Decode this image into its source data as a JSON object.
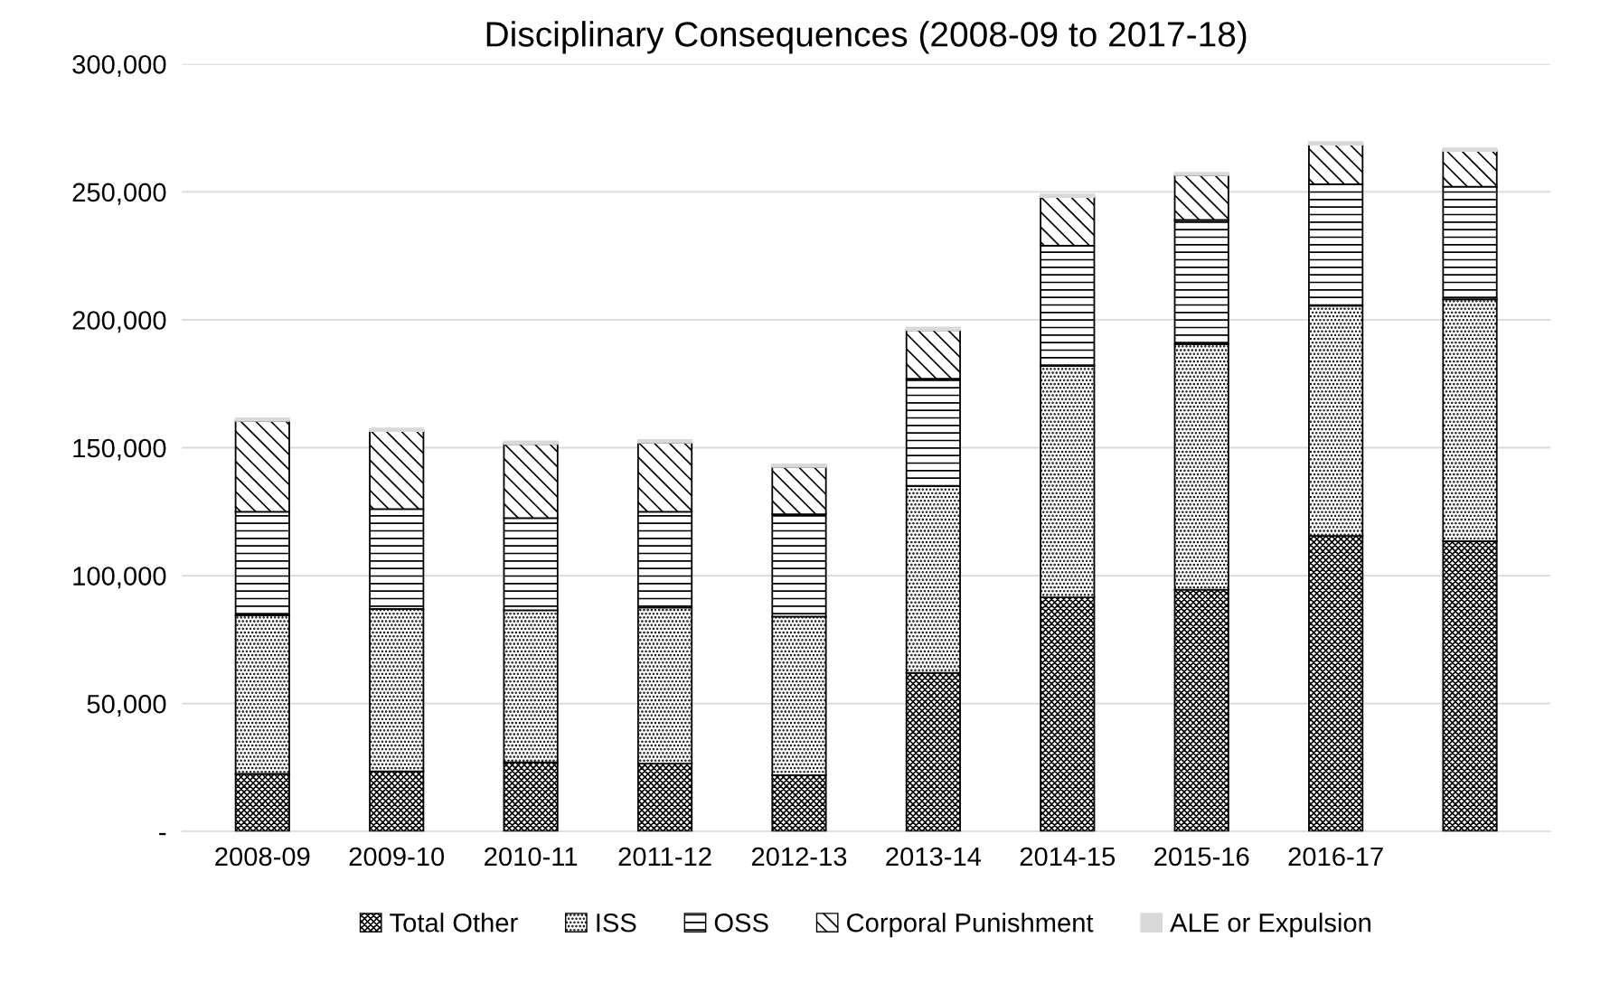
{
  "chart_data": {
    "type": "bar",
    "title": "Disciplinary Consequences (2008-09 to 2017-18)",
    "stacked": true,
    "categories": [
      "2008-09",
      "2009-10",
      "2010-11",
      "2011-12",
      "2012-13",
      "2013-14",
      "2014-15",
      "2015-16",
      "2016-17",
      null
    ],
    "series": [
      {
        "name": "Total Other",
        "color": "#000000",
        "values": [
          22500,
          23500,
          27000,
          26500,
          22000,
          62000,
          91500,
          94500,
          115500,
          113500
        ]
      },
      {
        "name": "ISS",
        "color": "#000000",
        "values": [
          62000,
          63500,
          59500,
          61000,
          62000,
          73000,
          90500,
          96000,
          90000,
          94500
        ]
      },
      {
        "name": "OSS",
        "color": "#000000",
        "values": [
          40500,
          39000,
          36000,
          37500,
          40000,
          42000,
          47000,
          48500,
          47500,
          44000
        ]
      },
      {
        "name": "Corporal Punishment",
        "color": "#000000",
        "values": [
          35500,
          30500,
          29000,
          27000,
          18500,
          19000,
          19000,
          17500,
          15500,
          14000
        ]
      },
      {
        "name": "ALE or Expulsion",
        "color": "#d9d9d9",
        "values": [
          1000,
          1000,
          1000,
          1000,
          1000,
          1000,
          1000,
          1000,
          1000,
          1000
        ]
      }
    ],
    "ylim": [
      0,
      300000
    ],
    "yticks": [
      {
        "value": 0,
        "label": "-"
      },
      {
        "value": 50000,
        "label": "50,000"
      },
      {
        "value": 100000,
        "label": "100,000"
      },
      {
        "value": 150000,
        "label": "150,000"
      },
      {
        "value": 200000,
        "label": "200,000"
      },
      {
        "value": 250000,
        "label": "250,000"
      },
      {
        "value": 300000,
        "label": "300,000"
      }
    ],
    "grid": "y",
    "legend": "bottom"
  }
}
